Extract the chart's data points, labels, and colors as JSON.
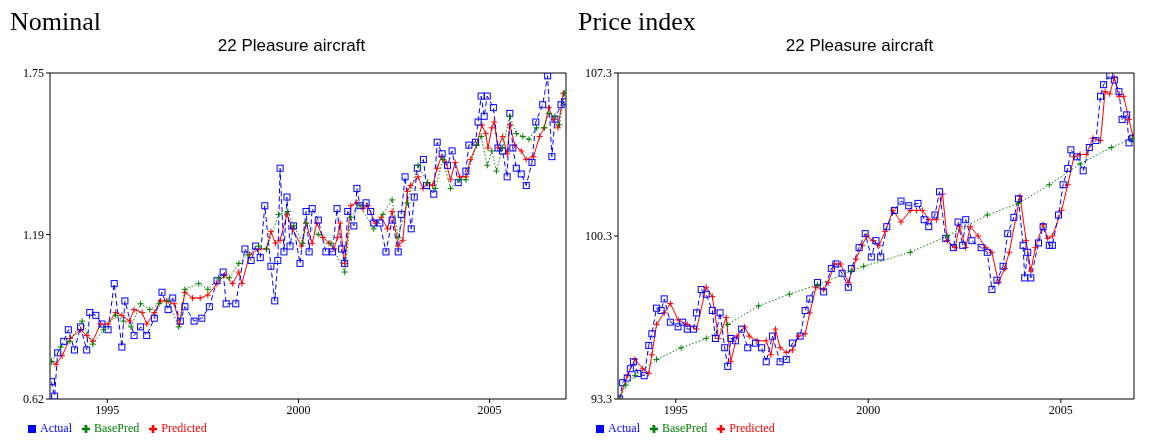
{
  "chart_data": [
    {
      "type": "line",
      "title": "Nominal",
      "subtitle": "22 Pleasure aircraft",
      "xlim": [
        1994,
        2007.5
      ],
      "xticks": [
        {
          "value": 1995.5,
          "label": "1995"
        },
        {
          "value": 2000.5,
          "label": "2000"
        },
        {
          "value": 2005.5,
          "label": "2005"
        }
      ],
      "ylim": [
        0.62,
        1.75
      ],
      "yticks": [
        0.62,
        1.19,
        1.75
      ],
      "legend": "bottom left",
      "series": [
        {
          "name": "Predicted",
          "color": "#ff0000",
          "marker": "cross",
          "line_style": "solid",
          "x": [
            1994.04,
            1994.16,
            1994.32,
            1994.52,
            1994.8,
            1994.96,
            1995.12,
            1995.32,
            1995.52,
            1995.72,
            1995.88,
            1996.08,
            1996.2,
            1996.41,
            1996.53,
            1996.73,
            1996.89,
            1997.05,
            1997.25,
            1997.39,
            1997.53,
            1997.73,
            1997.93,
            1998.13,
            1998.37,
            1998.57,
            1998.78,
            1998.94,
            1999.02,
            1999.22,
            1999.46,
            1999.66,
            1999.78,
            1999.9,
            2000.02,
            2000.2,
            2000.34,
            2000.58,
            2000.7,
            2000.86,
            2000.98,
            2001.14,
            2001.3,
            2001.43,
            2001.52,
            2001.59,
            2001.71,
            2001.87,
            2002.03,
            2002.19,
            2002.31,
            2002.51,
            2002.67,
            2002.83,
            2002.95,
            2003.11,
            2003.23,
            2003.35,
            2003.43,
            2003.63,
            2003.76,
            2003.88,
            2004.01,
            2004.13,
            2004.24,
            2004.36,
            2004.48,
            2004.6,
            2004.72,
            2004.88,
            2005.0,
            2005.16,
            2005.3,
            2005.4,
            2005.46,
            2005.56,
            2005.62,
            2005.72,
            2005.84,
            2005.96,
            2006.03,
            2006.16,
            2006.33,
            2006.46,
            2006.65,
            2006.81,
            2006.93,
            2007.05,
            2007.17,
            2007.29,
            2007.43
          ],
          "values": [
            0.75,
            0.74,
            0.77,
            0.83,
            0.86,
            0.84,
            0.82,
            0.88,
            0.88,
            0.92,
            0.91,
            0.89,
            0.93,
            0.92,
            0.88,
            0.92,
            0.96,
            0.96,
            0.95,
            0.88,
            0.99,
            0.97,
            0.97,
            0.98,
            1.02,
            1.05,
            1.02,
            1.06,
            1.02,
            1.12,
            1.14,
            1.14,
            1.2,
            1.16,
            1.17,
            1.26,
            1.21,
            1.15,
            1.23,
            1.16,
            1.23,
            1.18,
            1.16,
            1.14,
            1.18,
            1.23,
            1.09,
            1.29,
            1.3,
            1.28,
            1.29,
            1.23,
            1.25,
            1.21,
            1.27,
            1.15,
            1.17,
            1.34,
            1.36,
            1.39,
            1.35,
            1.37,
            1.36,
            1.42,
            1.46,
            1.44,
            1.38,
            1.44,
            1.39,
            1.39,
            1.45,
            1.5,
            1.57,
            1.54,
            1.49,
            1.56,
            1.58,
            1.49,
            1.53,
            1.47,
            1.57,
            1.5,
            1.48,
            1.45,
            1.46,
            1.53,
            1.56,
            1.63,
            1.59,
            1.56,
            1.68
          ]
        },
        {
          "name": "Actual",
          "color": "#0000ff",
          "marker": "square",
          "line_style": "dashed",
          "x": [
            1994.04,
            1994.12,
            1994.2,
            1994.36,
            1994.48,
            1994.64,
            1994.8,
            1994.96,
            1995.04,
            1995.2,
            1995.36,
            1995.52,
            1995.68,
            1995.88,
            1995.96,
            1996.2,
            1996.37,
            1996.53,
            1996.73,
            1996.93,
            1997.09,
            1997.21,
            1997.41,
            1997.53,
            1997.77,
            1997.97,
            1998.17,
            1998.37,
            1998.53,
            1998.61,
            1998.86,
            1999.1,
            1999.26,
            1999.38,
            1999.5,
            1999.62,
            1999.78,
            1999.88,
            1999.96,
            2000.02,
            2000.12,
            2000.2,
            2000.28,
            2000.37,
            2000.54,
            2000.7,
            2000.78,
            2000.86,
            2001.02,
            2001.22,
            2001.39,
            2001.51,
            2001.63,
            2001.71,
            2001.79,
            2001.95,
            2002.03,
            2002.11,
            2002.27,
            2002.39,
            2002.47,
            2002.63,
            2002.79,
            2002.95,
            2003.11,
            2003.19,
            2003.29,
            2003.45,
            2003.53,
            2003.61,
            2003.77,
            2003.85,
            2004.04,
            2004.13,
            2004.26,
            2004.4,
            2004.52,
            2004.68,
            2004.88,
            2004.96,
            2005.13,
            2005.2,
            2005.28,
            2005.36,
            2005.44,
            2005.6,
            2005.72,
            2005.84,
            2005.96,
            2006.03,
            2006.11,
            2006.2,
            2006.33,
            2006.46,
            2006.61,
            2006.71,
            2006.89,
            2007.02,
            2007.13,
            2007.21,
            2007.37,
            2007.46
          ],
          "values": [
            0.68,
            0.63,
            0.78,
            0.82,
            0.86,
            0.79,
            0.87,
            0.79,
            0.92,
            0.91,
            0.88,
            0.86,
            1.02,
            0.8,
            0.96,
            0.84,
            0.87,
            0.84,
            0.9,
            0.99,
            0.93,
            0.97,
            0.89,
            0.94,
            0.89,
            0.9,
            0.94,
            1.03,
            1.06,
            0.95,
            0.95,
            1.14,
            1.1,
            1.15,
            1.11,
            1.29,
            1.08,
            0.96,
            1.1,
            1.42,
            1.13,
            1.32,
            1.15,
            1.22,
            1.09,
            1.27,
            1.13,
            1.28,
            1.24,
            1.13,
            1.13,
            1.28,
            1.14,
            1.09,
            1.27,
            1.22,
            1.35,
            1.29,
            1.3,
            1.27,
            1.23,
            1.23,
            1.13,
            1.24,
            1.13,
            1.26,
            1.39,
            1.21,
            1.32,
            1.42,
            1.45,
            1.36,
            1.33,
            1.51,
            1.47,
            1.43,
            1.48,
            1.37,
            1.41,
            1.5,
            1.51,
            1.58,
            1.67,
            1.6,
            1.67,
            1.63,
            1.49,
            1.48,
            1.39,
            1.61,
            1.49,
            1.42,
            1.4,
            1.36,
            1.44,
            1.58,
            1.64,
            1.74,
            1.46,
            1.59,
            1.64,
            1.65
          ]
        },
        {
          "name": "BasePred",
          "color": "#008000",
          "marker": "cross",
          "line_style": "dotted",
          "x": [
            1994.04,
            1994.28,
            1994.52,
            1994.84,
            1995.12,
            1995.4,
            1995.72,
            1995.92,
            1996.12,
            1996.37,
            1996.61,
            1996.85,
            1997.09,
            1997.37,
            1997.53,
            1997.89,
            1998.13,
            1998.41,
            1998.69,
            1998.94,
            1999.18,
            1999.46,
            1999.66,
            1999.98,
            2000.22,
            2000.38,
            2000.62,
            2000.7,
            2001.02,
            2001.35,
            2001.71,
            2001.87,
            2002.11,
            2002.47,
            2002.71,
            2002.95,
            2003.11,
            2003.35,
            2003.63,
            2003.88,
            2004.08,
            2004.28,
            2004.48,
            2004.72,
            2004.88,
            2005.16,
            2005.28,
            2005.44,
            2005.56,
            2005.68,
            2005.84,
            2006.03,
            2006.2,
            2006.37,
            2006.53,
            2006.73,
            2006.93,
            2007.05,
            2007.21,
            2007.33,
            2007.46
          ],
          "values": [
            0.75,
            0.8,
            0.82,
            0.89,
            0.81,
            0.86,
            0.91,
            0.89,
            0.87,
            0.95,
            0.93,
            0.95,
            0.96,
            0.87,
            1.0,
            1.02,
            1.0,
            1.04,
            1.04,
            1.09,
            1.12,
            1.15,
            1.14,
            1.26,
            1.27,
            1.22,
            1.16,
            1.23,
            1.19,
            1.16,
            1.06,
            1.25,
            1.29,
            1.21,
            1.26,
            1.31,
            1.18,
            1.3,
            1.43,
            1.37,
            1.35,
            1.45,
            1.35,
            1.38,
            1.38,
            1.5,
            1.53,
            1.43,
            1.48,
            1.41,
            1.49,
            1.6,
            1.54,
            1.53,
            1.52,
            1.56,
            1.56,
            1.61,
            1.6,
            1.57,
            1.68
          ]
        }
      ]
    },
    {
      "type": "line",
      "title": "Price index",
      "subtitle": "22 Pleasure aircraft",
      "xlim": [
        1994,
        2007.4
      ],
      "xticks": [
        {
          "value": 1995.5,
          "label": "1995"
        },
        {
          "value": 2000.5,
          "label": "2000"
        },
        {
          "value": 2005.5,
          "label": "2005"
        }
      ],
      "ylim": [
        93.3,
        107.3
      ],
      "yticks": [
        93.3,
        100.3,
        107.3
      ],
      "legend": "bottom left",
      "series": [
        {
          "name": "Predicted",
          "color": "#ff0000",
          "marker": "cross",
          "line_style": "solid",
          "x": [
            1994.04,
            1994.24,
            1994.44,
            1994.64,
            1994.8,
            1994.88,
            1995.0,
            1995.2,
            1995.36,
            1995.56,
            1995.8,
            1996.04,
            1996.29,
            1996.45,
            1996.61,
            1996.81,
            1996.93,
            1997.09,
            1997.29,
            1997.41,
            1997.61,
            1997.85,
            1997.97,
            1998.09,
            1998.21,
            1998.37,
            1998.53,
            1998.69,
            1998.86,
            1998.98,
            1999.14,
            1999.34,
            1999.46,
            1999.62,
            1999.78,
            1999.98,
            2000.18,
            2000.34,
            2000.46,
            2000.62,
            2000.78,
            2000.94,
            2001.14,
            2001.35,
            2001.59,
            2001.75,
            2001.91,
            2002.07,
            2002.27,
            2002.43,
            2002.55,
            2002.75,
            2002.87,
            2003.03,
            2003.15,
            2003.35,
            2003.55,
            2003.71,
            2003.88,
            2004.04,
            2004.16,
            2004.44,
            2004.6,
            2004.72,
            2004.84,
            2005.04,
            2005.16,
            2005.28,
            2005.52,
            2005.68,
            2005.84,
            2006.0,
            2006.16,
            2006.33,
            2006.53,
            2006.65,
            2006.77,
            2006.89,
            2007.01,
            2007.13,
            2007.27,
            2007.37
          ],
          "values": [
            93.3,
            94.3,
            95.0,
            94.6,
            94.4,
            95.2,
            96.5,
            97.0,
            97.4,
            96.7,
            96.5,
            96.3,
            98.1,
            97.7,
            95.9,
            96.8,
            94.9,
            96.0,
            96.4,
            96.0,
            95.8,
            95.8,
            95.2,
            96.3,
            95.5,
            95.3,
            95.4,
            96.0,
            96.1,
            97.0,
            98.1,
            98.0,
            98.3,
            99.1,
            99.1,
            98.3,
            99.3,
            99.9,
            100.3,
            100.1,
            99.9,
            100.5,
            101.4,
            100.9,
            101.4,
            101.4,
            101.4,
            101.0,
            101.0,
            102.1,
            100.1,
            99.8,
            100.7,
            99.8,
            100.7,
            100.3,
            99.8,
            99.6,
            98.3,
            98.9,
            99.6,
            102.0,
            100.1,
            98.8,
            99.8,
            100.8,
            100.2,
            100.3,
            101.4,
            102.5,
            103.7,
            103.8,
            103.8,
            104.5,
            104.4,
            106.5,
            106.4,
            107.1,
            106.3,
            106.3,
            105.3,
            104.6
          ]
        },
        {
          "name": "Actual",
          "color": "#0000ff",
          "marker": "square",
          "line_style": "dashed",
          "x": [
            1994.04,
            1994.12,
            1994.24,
            1994.32,
            1994.4,
            1994.52,
            1994.68,
            1994.8,
            1994.88,
            1995.0,
            1995.12,
            1995.2,
            1995.36,
            1995.56,
            1995.68,
            1995.8,
            1995.96,
            1996.04,
            1996.16,
            1996.29,
            1996.45,
            1996.53,
            1996.65,
            1996.77,
            1996.85,
            1996.93,
            1997.05,
            1997.21,
            1997.37,
            1997.57,
            1997.73,
            1997.85,
            1998.01,
            1998.21,
            1998.37,
            1998.53,
            1998.73,
            1998.86,
            1998.98,
            1999.18,
            1999.34,
            1999.54,
            1999.66,
            1999.82,
            1999.98,
            2000.06,
            2000.26,
            2000.42,
            2000.58,
            2000.7,
            2000.82,
            2000.98,
            2001.18,
            2001.35,
            2001.55,
            2001.79,
            2001.95,
            2002.07,
            2002.23,
            2002.35,
            2002.51,
            2002.71,
            2002.83,
            2002.95,
            2003.03,
            2003.19,
            2003.43,
            2003.59,
            2003.71,
            2003.84,
            2004.0,
            2004.12,
            2004.28,
            2004.4,
            2004.52,
            2004.56,
            2004.64,
            2004.72,
            2004.92,
            2005.04,
            2005.2,
            2005.28,
            2005.44,
            2005.56,
            2005.68,
            2005.76,
            2005.92,
            2006.08,
            2006.24,
            2006.41,
            2006.53,
            2006.61,
            2006.77,
            2006.89,
            2007.01,
            2007.09,
            2007.21,
            2007.27,
            2007.37
          ],
          "values": [
            93.3,
            94.0,
            94.2,
            94.6,
            94.9,
            94.4,
            94.3,
            95.6,
            96.1,
            97.2,
            97.1,
            97.6,
            96.6,
            96.4,
            96.6,
            96.3,
            96.3,
            97.0,
            98.0,
            97.8,
            97.1,
            95.9,
            97.0,
            95.5,
            94.7,
            95.9,
            95.8,
            96.3,
            95.5,
            95.7,
            95.5,
            94.9,
            96.0,
            94.9,
            95.0,
            95.7,
            96.0,
            97.1,
            97.6,
            98.3,
            97.9,
            98.9,
            99.1,
            98.7,
            98.1,
            98.9,
            99.8,
            100.4,
            99.4,
            100.1,
            99.4,
            100.7,
            101.4,
            101.8,
            101.6,
            101.7,
            101.0,
            100.7,
            101.2,
            102.2,
            100.2,
            99.8,
            100.9,
            99.9,
            101.0,
            100.1,
            99.8,
            99.6,
            98.0,
            98.4,
            99.0,
            100.4,
            101.1,
            101.9,
            99.9,
            98.5,
            99.6,
            98.5,
            100.0,
            100.7,
            99.9,
            99.9,
            101.2,
            102.5,
            103.2,
            104.0,
            103.7,
            103.1,
            104.1,
            104.4,
            106.3,
            106.8,
            107.2,
            107.0,
            106.5,
            105.3,
            105.5,
            104.3,
            104.5
          ]
        },
        {
          "name": "BasePred",
          "color": "#008000",
          "marker": "cross",
          "line_style": "dotted",
          "x": [
            1994.04,
            1994.2,
            1994.44,
            1995.0,
            1995.64,
            1996.29,
            1996.85,
            1997.65,
            1998.45,
            1999.18,
            2000.06,
            2000.38,
            2001.59,
            2002.55,
            2003.59,
            2004.4,
            2005.2,
            2006.0,
            2006.81,
            2007.37
          ],
          "values": [
            93.3,
            93.9,
            94.3,
            95.0,
            95.5,
            95.9,
            96.5,
            97.3,
            97.8,
            98.2,
            98.8,
            99.0,
            99.6,
            100.3,
            101.2,
            101.7,
            102.5,
            103.4,
            104.1,
            104.5
          ]
        }
      ]
    }
  ]
}
